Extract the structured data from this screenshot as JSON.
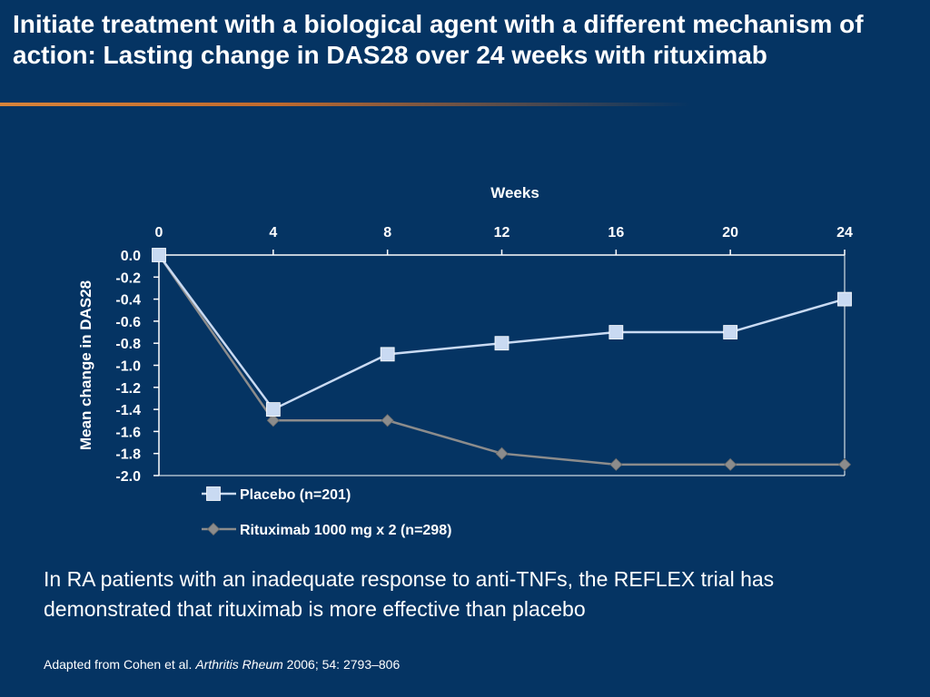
{
  "slide": {
    "title": "Initiate treatment with a biological agent with a different mechanism of action: Lasting change in DAS28 over 24 weeks with rituximab",
    "summary": "In RA patients with an inadequate response to anti-TNFs, the REFLEX trial has demonstrated that rituximab is more effective than placebo",
    "citation": {
      "prefix": "Adapted from Cohen et al. ",
      "journal": "Arthritis Rheum",
      "suffix": " 2006; 54: 2793–806"
    },
    "colors": {
      "background": "#053463",
      "accent_rule": "#d9843a",
      "placebo": "#c9daf2",
      "rituximab": "#8c8c8c"
    }
  },
  "chart_data": {
    "type": "line",
    "xlabel": "Weeks",
    "ylabel": "Mean change in DAS28",
    "x": [
      0,
      4,
      8,
      12,
      16,
      20,
      24
    ],
    "x_ticks": [
      "0",
      "4",
      "8",
      "12",
      "16",
      "20",
      "24"
    ],
    "y_ticks": [
      "0.0",
      "-0.2",
      "-0.4",
      "-0.6",
      "-0.8",
      "-1.0",
      "-1.2",
      "-1.4",
      "-1.6",
      "-1.8",
      "-2.0"
    ],
    "xlim": [
      0,
      24
    ],
    "ylim": [
      -2.0,
      0.0
    ],
    "x_axis_position": "top",
    "grid": false,
    "legend_position": "bottom-left",
    "series": [
      {
        "name": "Placebo (n=201)",
        "marker": "square",
        "color": "#c9daf2",
        "values": [
          0.0,
          -1.4,
          -0.9,
          -0.8,
          -0.7,
          -0.7,
          -0.4
        ]
      },
      {
        "name": "Rituximab 1000 mg x 2 (n=298)",
        "marker": "diamond",
        "color": "#8c8c8c",
        "values": [
          0.0,
          -1.5,
          -1.5,
          -1.8,
          -1.9,
          -1.9,
          -1.9
        ]
      }
    ]
  }
}
